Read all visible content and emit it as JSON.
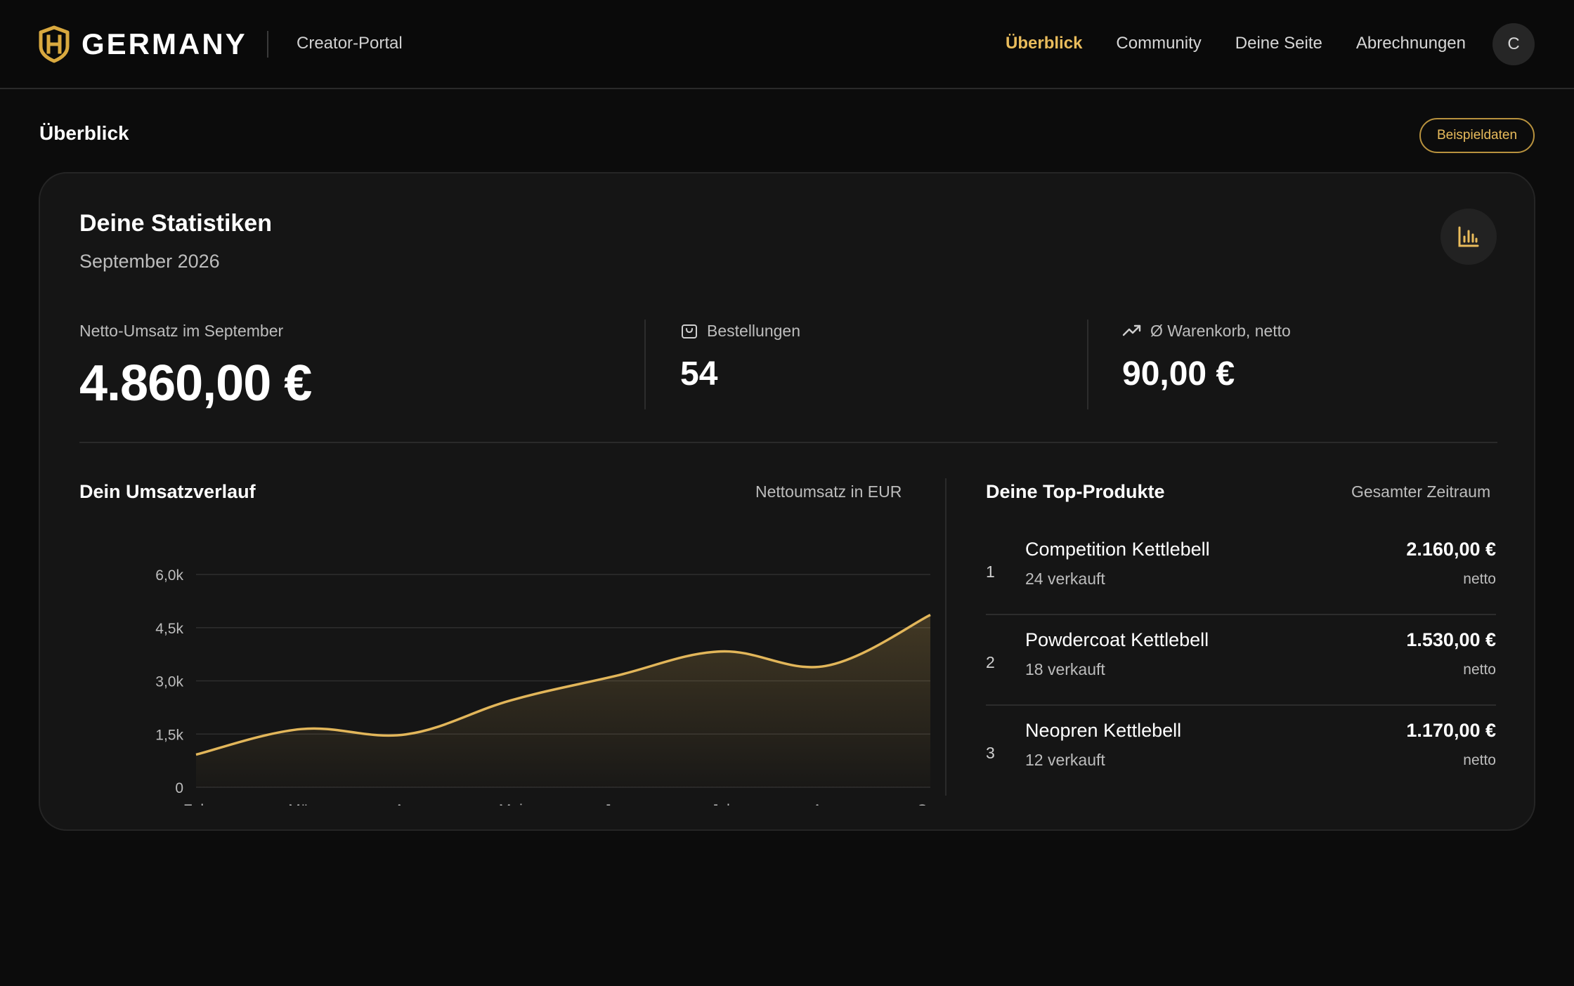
{
  "brand": {
    "name": "GERMANY",
    "portal": "Creator-Portal",
    "logo_icon": "h-shield-logo-icon",
    "accent_color": "#e9bc5c"
  },
  "nav": {
    "items": [
      {
        "label": "Überblick",
        "active": true
      },
      {
        "label": "Community",
        "active": false
      },
      {
        "label": "Deine Seite",
        "active": false
      },
      {
        "label": "Abrechnungen",
        "active": false
      }
    ],
    "avatar_initial": "C"
  },
  "page": {
    "title": "Überblick",
    "badge": "Beispieldaten"
  },
  "stats": {
    "title": "Deine Statistiken",
    "period": "September 2026",
    "icon": "bar-chart-icon",
    "kpis": {
      "revenue": {
        "label": "Netto-Umsatz im September",
        "value": "4.860,00 €"
      },
      "orders": {
        "label": "Bestellungen",
        "value": "54",
        "icon": "shopping-bag-icon"
      },
      "basket": {
        "label": "Ø Warenkorb, netto",
        "value": "90,00 €",
        "icon": "trending-up-icon"
      }
    }
  },
  "revenue_chart": {
    "title": "Dein Umsatzverlauf",
    "note": "Nettoumsatz in EUR"
  },
  "top_products": {
    "title": "Deine Top-Produkte",
    "note": "Gesamter Zeitraum",
    "items": [
      {
        "rank": "1",
        "name": "Competition Kettlebell",
        "sold": "24 verkauft",
        "price": "2.160,00 €",
        "net": "netto"
      },
      {
        "rank": "2",
        "name": "Powdercoat Kettlebell",
        "sold": "18 verkauft",
        "price": "1.530,00 €",
        "net": "netto"
      },
      {
        "rank": "3",
        "name": "Neopren Kettlebell",
        "sold": "12 verkauft",
        "price": "1.170,00 €",
        "net": "netto"
      }
    ]
  },
  "chart_data": {
    "type": "area",
    "title": "Dein Umsatzverlauf",
    "xlabel": "",
    "ylabel": "Nettoumsatz in EUR",
    "categories": [
      "Feb",
      "Mär",
      "Apr",
      "Mai",
      "Jun",
      "Jul",
      "Aug",
      "Sep"
    ],
    "values": [
      920,
      1640,
      1490,
      2450,
      3140,
      3830,
      3420,
      4860
    ],
    "ylim": [
      0,
      6000
    ],
    "yticks": [
      0,
      1500,
      3000,
      4500,
      6000
    ],
    "ytick_labels": [
      "0",
      "1,5k",
      "3,0k",
      "4,5k",
      "6,0k"
    ],
    "grid": true,
    "legend": "none",
    "line_color": "#e2b65a"
  }
}
